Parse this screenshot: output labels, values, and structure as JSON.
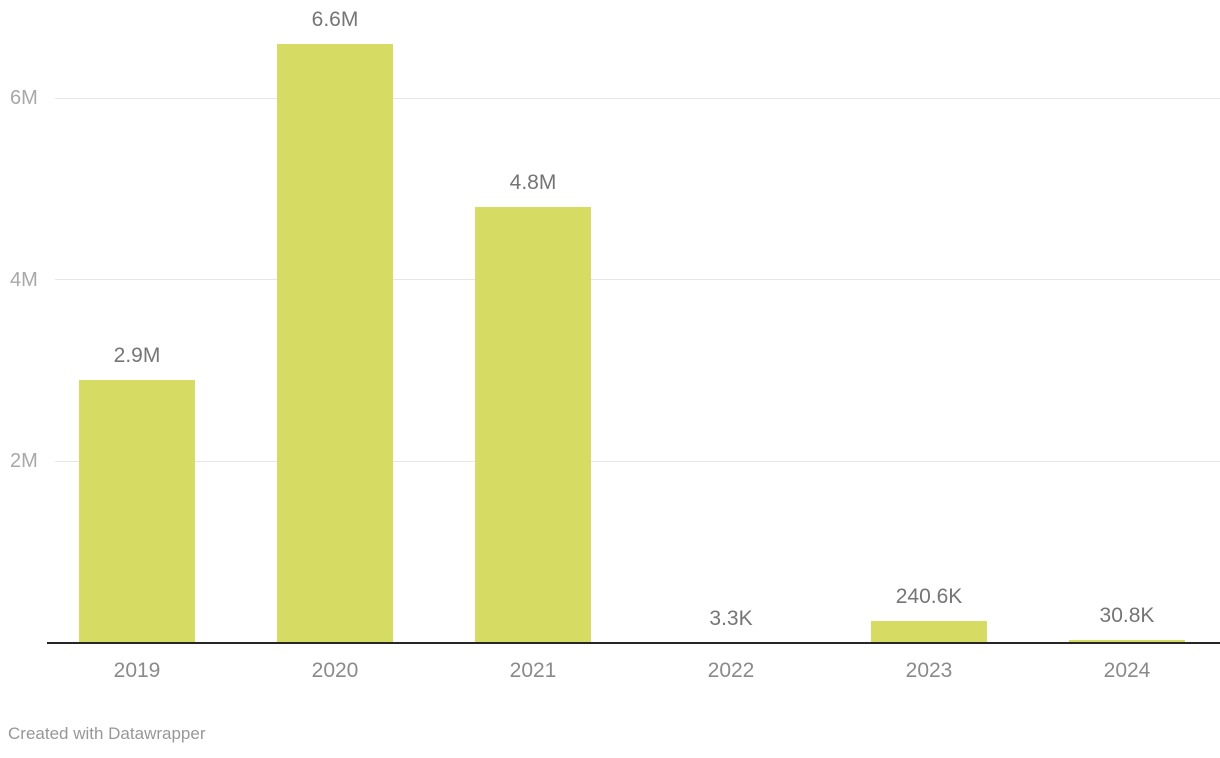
{
  "chart_data": {
    "type": "bar",
    "title": "",
    "xlabel": "",
    "ylabel": "",
    "categories": [
      "2019",
      "2020",
      "2021",
      "2022",
      "2023",
      "2024"
    ],
    "values": [
      2900000,
      6600000,
      4800000,
      3300,
      240600,
      30800
    ],
    "value_labels": [
      "2.9M",
      "6.6M",
      "4.8M",
      "3.3K",
      "240.6K",
      "30.8K"
    ],
    "y_ticks": [
      {
        "value": 2000000,
        "label": "2M"
      },
      {
        "value": 4000000,
        "label": "4M"
      },
      {
        "value": 6000000,
        "label": "6M"
      }
    ],
    "ylim": [
      0,
      7080000
    ],
    "grid": true,
    "legend": "none",
    "bar_color": "#d6db64"
  },
  "colors": {
    "background": "#ffffff",
    "bar": "#d6db64",
    "value_label": "#757575",
    "axis_label": "#8a8a8a",
    "y_tick_label": "#a8a8a8",
    "gridline": "#e6e6e6",
    "baseline": "#262626",
    "attribution": "#979797"
  },
  "footer": {
    "attribution": "Created with Datawrapper"
  }
}
